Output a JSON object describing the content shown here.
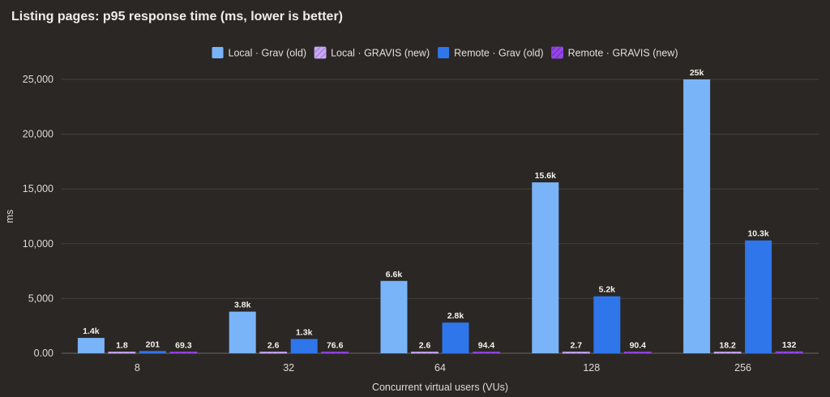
{
  "chart_data": {
    "type": "bar",
    "title": "Listing pages: p95 response time (ms, lower is better)",
    "xlabel": "Concurrent virtual users (VUs)",
    "ylabel": "ms",
    "categories": [
      "8",
      "32",
      "64",
      "128",
      "256"
    ],
    "ylim": [
      0,
      25000
    ],
    "yticks": [
      "0.00",
      "5,000",
      "10,000",
      "15,000",
      "20,000",
      "25,000"
    ],
    "grid": true,
    "legend_position": "top-center",
    "series": [
      {
        "name": "Local · Grav (old)",
        "color": "#7ab4f8",
        "pattern": "solid",
        "values": [
          1400,
          3800,
          6600,
          15600,
          25000
        ],
        "labels": [
          "1.4k",
          "3.8k",
          "6.6k",
          "15.6k",
          "25k"
        ]
      },
      {
        "name": "Local · GRAVIS (new)",
        "color": "#c9a8f5",
        "pattern": "hatched",
        "values": [
          1.8,
          2.6,
          2.6,
          2.7,
          18.2
        ],
        "labels": [
          "1.8",
          "2.6",
          "2.6",
          "2.7",
          "18.2"
        ]
      },
      {
        "name": "Remote · Grav (old)",
        "color": "#2f76ea",
        "pattern": "solid",
        "values": [
          201,
          1300,
          2800,
          5200,
          10300
        ],
        "labels": [
          "201",
          "1.3k",
          "2.8k",
          "5.2k",
          "10.3k"
        ]
      },
      {
        "name": "Remote · GRAVIS (new)",
        "color": "#9646e8",
        "pattern": "hatched",
        "values": [
          69.3,
          76.6,
          94.4,
          90.4,
          132
        ],
        "labels": [
          "69.3",
          "76.6",
          "94.4",
          "90.4",
          "132"
        ]
      }
    ]
  }
}
